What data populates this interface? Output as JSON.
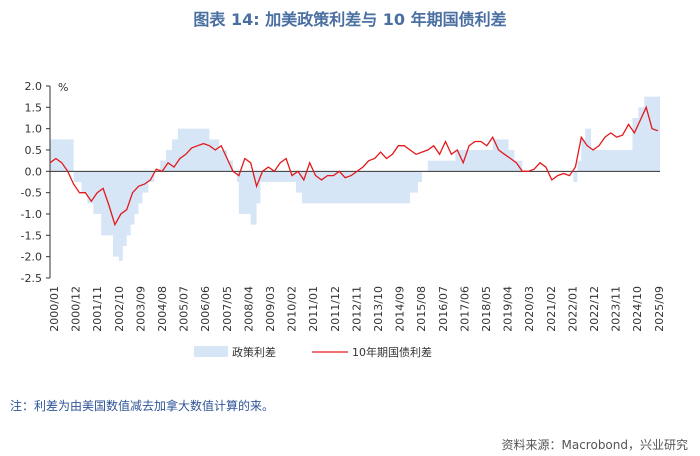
{
  "title": "图表 14: 加美政策利差与 10 年期国债利差",
  "note": "注：利差为由美国数值减去加拿大数值计算的来。",
  "source": "资料来源：Macrobond，兴业研究",
  "colors": {
    "policy_area": "#d6e6f6",
    "bond_line": "#e31a1c",
    "axis": "#333333"
  },
  "chart_data": {
    "type": "area",
    "unit_label": "%",
    "ylim": [
      -2.5,
      2.0
    ],
    "yticks": [
      2.0,
      1.5,
      1.0,
      0.5,
      0.0,
      -0.5,
      -1.0,
      -1.5,
      -2.0,
      -2.5
    ],
    "ytick_labels": [
      "2.0",
      "1.5",
      "1.0",
      "0.5",
      "0.0",
      "-0.5",
      "-1.0",
      "-1.5",
      "-2.0",
      "-2.5"
    ],
    "xlim": [
      "2000-01",
      "2025-11"
    ],
    "xtick_labels": [
      "2000/01",
      "2000/12",
      "2001/11",
      "2002/10",
      "2003/09",
      "2004/08",
      "2005/07",
      "2006/06",
      "2007/05",
      "2008/04",
      "2009/03",
      "2010/02",
      "2011/01",
      "2011/12",
      "2012/11",
      "2013/10",
      "2014/09",
      "2015/08",
      "2016/07",
      "2017/06",
      "2018/05",
      "2019/04",
      "2020/03",
      "2021/02",
      "2022/01",
      "2022/12",
      "2023/11",
      "2024/10",
      "2025/09"
    ],
    "legend_position": "bottom",
    "series": [
      {
        "name": "政策利差",
        "kind": "area",
        "x": [
          "2000-01",
          "2000-07",
          "2000-10",
          "2001-01",
          "2001-05",
          "2001-08",
          "2001-11",
          "2002-03",
          "2002-06",
          "2002-09",
          "2002-12",
          "2003-02",
          "2003-04",
          "2003-06",
          "2003-08",
          "2003-10",
          "2003-12",
          "2004-03",
          "2004-06",
          "2004-09",
          "2004-12",
          "2005-03",
          "2005-06",
          "2005-09",
          "2005-12",
          "2006-03",
          "2006-06",
          "2006-10",
          "2007-03",
          "2007-07",
          "2007-10",
          "2007-12",
          "2008-01",
          "2008-03",
          "2008-05",
          "2008-07",
          "2008-10",
          "2008-12",
          "2009-01",
          "2009-04",
          "2009-09",
          "2010-01",
          "2010-06",
          "2010-09",
          "2010-12",
          "2011-06",
          "2012-01",
          "2013-01",
          "2014-01",
          "2015-01",
          "2015-04",
          "2015-08",
          "2015-10",
          "2016-01",
          "2016-07",
          "2016-12",
          "2017-03",
          "2017-06",
          "2017-09",
          "2018-01",
          "2018-06",
          "2018-10",
          "2019-01",
          "2019-06",
          "2019-09",
          "2020-01",
          "2020-03",
          "2020-06",
          "2021-01",
          "2021-06",
          "2022-01",
          "2022-03",
          "2022-05",
          "2022-07",
          "2022-09",
          "2022-12",
          "2023-03",
          "2023-07",
          "2023-12",
          "2024-03",
          "2024-06",
          "2024-09",
          "2024-12",
          "2025-03",
          "2025-06",
          "2025-10"
        ],
        "values": [
          0.75,
          0.75,
          0.75,
          -0.25,
          -0.5,
          -0.75,
          -1.0,
          -1.5,
          -1.5,
          -2.0,
          -2.1,
          -1.75,
          -1.5,
          -1.25,
          -1.0,
          -0.75,
          -0.5,
          -0.25,
          0.0,
          0.25,
          0.5,
          0.75,
          1.0,
          1.0,
          1.0,
          1.0,
          1.0,
          0.75,
          0.5,
          0.25,
          0.0,
          -0.25,
          -1.0,
          -1.0,
          -1.0,
          -1.25,
          -0.75,
          -0.25,
          -0.25,
          -0.25,
          -0.25,
          -0.25,
          -0.5,
          -0.75,
          -0.75,
          -0.75,
          -0.75,
          -0.75,
          -0.75,
          -0.75,
          -0.5,
          -0.25,
          0.0,
          0.25,
          0.25,
          0.25,
          0.5,
          0.5,
          0.5,
          0.5,
          0.5,
          0.75,
          0.75,
          0.5,
          0.25,
          0.0,
          0.0,
          0.0,
          0.0,
          0.0,
          0.0,
          -0.25,
          0.25,
          0.75,
          1.0,
          0.5,
          0.5,
          0.5,
          0.5,
          0.5,
          0.5,
          1.25,
          1.5,
          1.75,
          1.75,
          1.75
        ]
      },
      {
        "name": "10年期国债利差",
        "kind": "line",
        "x": [
          "2000-01",
          "2000-04",
          "2000-07",
          "2000-10",
          "2001-01",
          "2001-04",
          "2001-07",
          "2001-10",
          "2002-01",
          "2002-04",
          "2002-07",
          "2002-10",
          "2003-01",
          "2003-04",
          "2003-07",
          "2003-10",
          "2004-01",
          "2004-04",
          "2004-07",
          "2004-10",
          "2005-01",
          "2005-04",
          "2005-07",
          "2005-10",
          "2006-01",
          "2006-04",
          "2006-07",
          "2006-10",
          "2007-01",
          "2007-04",
          "2007-07",
          "2007-10",
          "2008-01",
          "2008-04",
          "2008-07",
          "2008-10",
          "2009-01",
          "2009-04",
          "2009-07",
          "2009-10",
          "2010-01",
          "2010-04",
          "2010-07",
          "2010-10",
          "2011-01",
          "2011-04",
          "2011-07",
          "2011-10",
          "2012-01",
          "2012-04",
          "2012-07",
          "2012-10",
          "2013-01",
          "2013-04",
          "2013-07",
          "2013-10",
          "2014-01",
          "2014-04",
          "2014-07",
          "2014-10",
          "2015-01",
          "2015-04",
          "2015-07",
          "2015-10",
          "2016-01",
          "2016-04",
          "2016-07",
          "2016-10",
          "2017-01",
          "2017-04",
          "2017-07",
          "2017-10",
          "2018-01",
          "2018-04",
          "2018-07",
          "2018-10",
          "2019-01",
          "2019-04",
          "2019-07",
          "2019-10",
          "2020-01",
          "2020-04",
          "2020-07",
          "2020-10",
          "2021-01",
          "2021-04",
          "2021-07",
          "2021-10",
          "2022-01",
          "2022-04",
          "2022-07",
          "2022-10",
          "2023-01",
          "2023-04",
          "2023-07",
          "2023-10",
          "2024-01",
          "2024-04",
          "2024-07",
          "2024-10",
          "2025-01",
          "2025-04",
          "2025-07",
          "2025-10"
        ],
        "values": [
          0.2,
          0.3,
          0.2,
          0.0,
          -0.3,
          -0.5,
          -0.5,
          -0.7,
          -0.5,
          -0.4,
          -0.8,
          -1.25,
          -1.0,
          -0.9,
          -0.5,
          -0.35,
          -0.3,
          -0.2,
          0.05,
          0.0,
          0.2,
          0.1,
          0.3,
          0.4,
          0.55,
          0.6,
          0.65,
          0.6,
          0.5,
          0.6,
          0.3,
          0.0,
          -0.1,
          0.3,
          0.2,
          -0.35,
          0.0,
          0.1,
          0.0,
          0.2,
          0.3,
          -0.1,
          0.0,
          -0.2,
          0.2,
          -0.1,
          -0.2,
          -0.1,
          -0.1,
          0.0,
          -0.15,
          -0.1,
          0.0,
          0.1,
          0.25,
          0.3,
          0.45,
          0.3,
          0.4,
          0.6,
          0.6,
          0.5,
          0.4,
          0.45,
          0.5,
          0.6,
          0.4,
          0.7,
          0.4,
          0.5,
          0.2,
          0.6,
          0.7,
          0.7,
          0.6,
          0.8,
          0.5,
          0.4,
          0.3,
          0.2,
          0.0,
          0.0,
          0.05,
          0.2,
          0.1,
          -0.2,
          -0.1,
          -0.05,
          -0.1,
          0.1,
          0.8,
          0.6,
          0.5,
          0.6,
          0.8,
          0.9,
          0.8,
          0.85,
          1.1,
          0.9,
          1.2,
          1.5,
          1.0,
          0.95
        ]
      }
    ]
  }
}
